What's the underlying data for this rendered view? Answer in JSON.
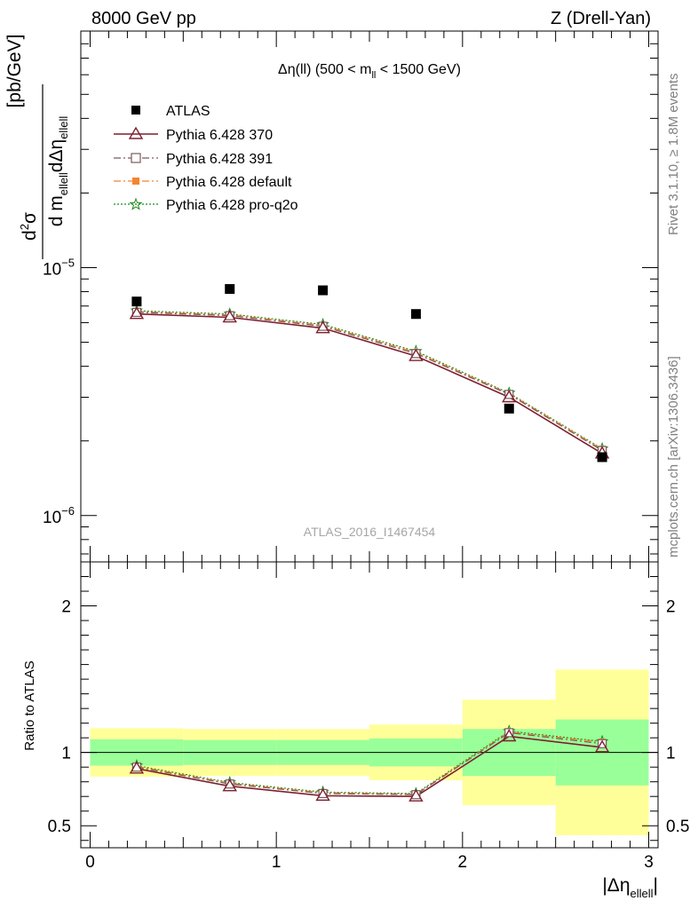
{
  "header": {
    "left_label": "8000 GeV pp",
    "right_label": "Z (Drell-Yan)"
  },
  "side": {
    "rivet": "Rivet 3.1.10, ≥ 1.8M events",
    "mcplots": "mcplots.cern.ch [arXiv:1306.3436]"
  },
  "watermark": "ATLAS_2016_I1467454",
  "colors": {
    "atlas": "#000000",
    "p370": "#7f1f2e",
    "p391": "#7a5a5a",
    "pdefault": "#f4852e",
    "pq2o": "#1e8a1e",
    "band_inner": "#99ff99",
    "band_outer": "#ffff99"
  },
  "chart_data": [
    {
      "type": "scatter",
      "panel": "main",
      "title_parts": {
        "main": "Δη(ll) (500 < m",
        "sub": "ll",
        "end": " < 1500 GeV)"
      },
      "ylabel": {
        "d2": "d",
        "sq": "2",
        "sigma": "σ",
        "den": "d m",
        "sub1": "ellell",
        "deta": "dΔη",
        "sub2": "ellell",
        "units": "[pb/GeV]"
      },
      "yscale": "log",
      "ylim": [
        6.5e-07,
        9e-05
      ],
      "xlim": [
        -0.05,
        3.05
      ],
      "yticks": [
        {
          "v": 1e-05,
          "label": "10",
          "exp": "−5"
        },
        {
          "v": 1e-06,
          "label": "10",
          "exp": "−6"
        }
      ],
      "x": [
        0.25,
        0.75,
        1.25,
        1.75,
        2.25,
        2.75
      ],
      "series": [
        {
          "name": "ATLAS",
          "key": "atlas",
          "values": [
            7.3e-06,
            8.2e-06,
            8.1e-06,
            6.5e-06,
            2.7e-06,
            1.72e-06
          ]
        },
        {
          "name": "Pythia 6.428 370",
          "key": "p370",
          "values": [
            6.5e-06,
            6.3e-06,
            5.7e-06,
            4.4e-06,
            3e-06,
            1.78e-06
          ]
        },
        {
          "name": "Pythia 6.428 391",
          "key": "p391",
          "values": [
            6.6e-06,
            6.4e-06,
            5.8e-06,
            4.5e-06,
            3.08e-06,
            1.83e-06
          ]
        },
        {
          "name": "Pythia 6.428 default",
          "key": "pdefault",
          "values": [
            6.65e-06,
            6.45e-06,
            5.85e-06,
            4.55e-06,
            3.1e-06,
            1.85e-06
          ]
        },
        {
          "name": "Pythia 6.428 pro-q2o",
          "key": "pq2o",
          "values": [
            6.7e-06,
            6.5e-06,
            5.9e-06,
            4.6e-06,
            3.12e-06,
            1.86e-06
          ]
        }
      ],
      "legend": "top-left"
    },
    {
      "type": "line",
      "panel": "ratio",
      "ylabel": "Ratio to ATLAS",
      "xlabel": {
        "main": "|Δη",
        "sub": "ellell",
        "end": "|"
      },
      "xlim": [
        -0.05,
        3.05
      ],
      "ylim": [
        0.35,
        2.3
      ],
      "xticks": [
        0,
        1,
        2,
        3
      ],
      "xtick_labels": [
        "0",
        "1",
        "2",
        "3"
      ],
      "yticks": [
        0.5,
        1,
        2
      ],
      "ytick_labels": [
        "0.5",
        "1",
        "2"
      ],
      "bins": [
        [
          0,
          0.5
        ],
        [
          0.5,
          1
        ],
        [
          1,
          1.5
        ],
        [
          1.5,
          2
        ],
        [
          2,
          2.5
        ],
        [
          2.5,
          3
        ]
      ],
      "band_inner": [
        [
          0.91,
          1.09
        ],
        [
          0.915,
          1.085
        ],
        [
          0.915,
          1.085
        ],
        [
          0.905,
          1.095
        ],
        [
          0.84,
          1.16
        ],
        [
          0.775,
          1.225
        ]
      ],
      "band_outer": [
        [
          0.835,
          1.165
        ],
        [
          0.84,
          1.16
        ],
        [
          0.84,
          1.16
        ],
        [
          0.81,
          1.19
        ],
        [
          0.64,
          1.36
        ],
        [
          0.435,
          1.565
        ]
      ],
      "x": [
        0.25,
        0.75,
        1.25,
        1.75,
        2.25,
        2.75
      ],
      "series": [
        {
          "name": "Pythia 6.428 370",
          "key": "p370",
          "values": [
            0.89,
            0.77,
            0.705,
            0.7,
            1.11,
            1.035
          ]
        },
        {
          "name": "Pythia 6.428 391",
          "key": "p391",
          "values": [
            0.9,
            0.785,
            0.72,
            0.712,
            1.135,
            1.06
          ]
        },
        {
          "name": "Pythia 6.428 default",
          "key": "pdefault",
          "values": [
            0.905,
            0.79,
            0.725,
            0.715,
            1.14,
            1.07
          ]
        },
        {
          "name": "Pythia 6.428 pro-q2o",
          "key": "pq2o",
          "values": [
            0.91,
            0.795,
            0.73,
            0.72,
            1.145,
            1.075
          ]
        }
      ]
    }
  ]
}
